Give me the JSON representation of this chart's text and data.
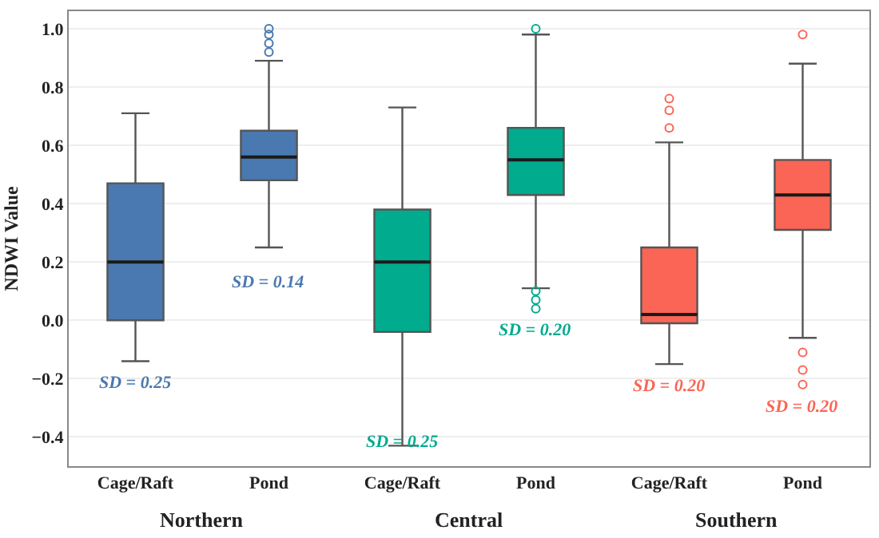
{
  "chart_data": {
    "type": "box",
    "ylabel": "NDWI Value",
    "categories": [
      "Cage/Raft",
      "Pond",
      "Cage/Raft",
      "Pond",
      "Cage/Raft",
      "Pond"
    ],
    "colors": [
      "#4a78b0",
      "#4a78b0",
      "#00ab8e",
      "#00ab8e",
      "#fa6555",
      "#fa6555"
    ],
    "boxes": [
      {
        "low": -0.14,
        "q1": 0.0,
        "median": 0.2,
        "q3": 0.47,
        "high": 0.71
      },
      {
        "low": 0.25,
        "q1": 0.48,
        "median": 0.56,
        "q3": 0.65,
        "high": 0.89,
        "outliers": [
          0.92,
          0.95,
          0.98,
          1.0
        ]
      },
      {
        "low": -0.43,
        "q1": -0.04,
        "median": 0.2,
        "q3": 0.38,
        "high": 0.73
      },
      {
        "low": 0.11,
        "q1": 0.43,
        "median": 0.55,
        "q3": 0.66,
        "high": 0.98,
        "outliers": [
          0.04,
          0.07,
          0.1,
          1.0
        ]
      },
      {
        "low": -0.15,
        "q1": -0.01,
        "median": 0.02,
        "q3": 0.25,
        "high": 0.61,
        "outliers": [
          0.66,
          0.72,
          0.76
        ]
      },
      {
        "low": -0.06,
        "q1": 0.31,
        "median": 0.43,
        "q3": 0.55,
        "high": 0.88,
        "outliers": [
          -0.22,
          -0.17,
          -0.11,
          0.98
        ]
      }
    ],
    "annotations": [
      "Northern",
      "Central",
      "Southern",
      "SD = 0.25",
      "SD = 0.14",
      "SD = 0.25",
      "SD = 0.20",
      "SD = 0.20",
      "SD = 0.20"
    ],
    "ylim": [
      -0.5,
      1.06
    ],
    "yticks": [
      {
        "value": -0.4,
        "label": "−0.4"
      },
      {
        "value": -0.2,
        "label": "−0.2"
      },
      {
        "value": 0,
        "label": "0.0"
      },
      {
        "value": 0.2,
        "label": "0.2"
      },
      {
        "value": 0.4,
        "label": "0.4"
      },
      {
        "value": 0.6,
        "label": "0.6"
      },
      {
        "value": 0.8,
        "label": "0.8"
      },
      {
        "value": 1,
        "label": "1.0"
      }
    ],
    "grid": "y",
    "marker": "circle"
  }
}
